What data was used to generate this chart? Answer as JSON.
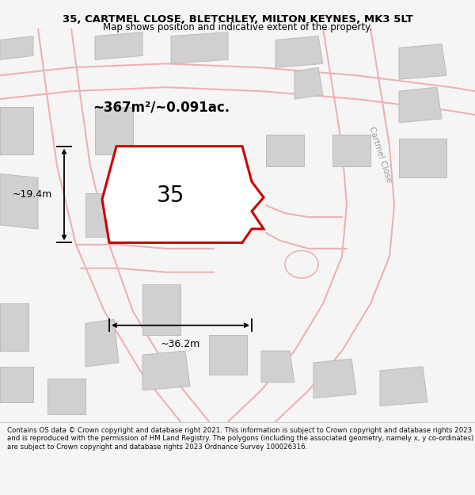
{
  "title": "35, CARTMEL CLOSE, BLETCHLEY, MILTON KEYNES, MK3 5LT",
  "subtitle": "Map shows position and indicative extent of the property.",
  "footnote": "Contains OS data © Crown copyright and database right 2021. This information is subject to Crown copyright and database rights 2023 and is reproduced with the permission of HM Land Registry. The polygons (including the associated geometry, namely x, y co-ordinates) are subject to Crown copyright and database rights 2023 Ordnance Survey 100026316.",
  "bg_color": "#f5f5f5",
  "map_bg": "#ffffff",
  "area_text": "~367m²/~0.091ac.",
  "label_35": "35",
  "dim_width": "~36.2m",
  "dim_height": "~19.4m",
  "street_label": "Cartmel Close",
  "red_color": "#cc0000",
  "road_color": "#f0b0b0",
  "building_color": "#d0d0d0",
  "building_edge": "#bbbbbb"
}
